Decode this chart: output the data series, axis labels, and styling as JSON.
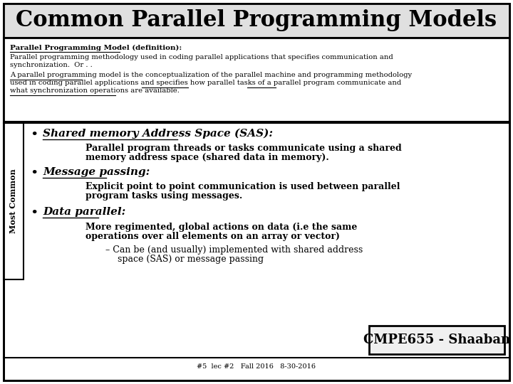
{
  "title": "Common Parallel Programming Models",
  "title_fontsize": 22,
  "bg_color": "#ffffff",
  "border_color": "#000000",
  "text_color": "#000000",
  "definition_header": "Parallel Programming Model (definition):",
  "definition_line1": "Parallel programming methodology used in coding parallel applications that specifies communication and",
  "definition_line2": "synchronization.  Or . .",
  "def2_line1": "A parallel programming model is the conceptualization of the parallel machine and programming methodology",
  "def2_line2": "used in coding parallel applications and specifies how parallel tasks of a parallel program communicate and",
  "def2_line3": "what synchronization operations are available.",
  "bullet1_header": "Shared memory Address Space (SAS):",
  "bullet1_text1": "Parallel program threads or tasks communicate using a shared",
  "bullet1_text2": "memory address space (shared data in memory).",
  "bullet2_header": "Message passing:",
  "bullet2_text1": "Explicit point to point communication is used between parallel",
  "bullet2_text2": "program tasks using messages.",
  "bullet3_header": "Data parallel:",
  "bullet3_text1": "More regimented, global actions on data (i.e the same",
  "bullet3_text2": "operations over all elements on an array or vector)",
  "bullet3_sub1": "– Can be (and usually) implemented with shared address",
  "bullet3_sub2": "space (SAS) or message passing",
  "sidebar_text": "Most Common",
  "badge_text": "CMPE655 - Shaaban",
  "footer_text": "#5  lec #2   Fall 2016   8-30-2016"
}
